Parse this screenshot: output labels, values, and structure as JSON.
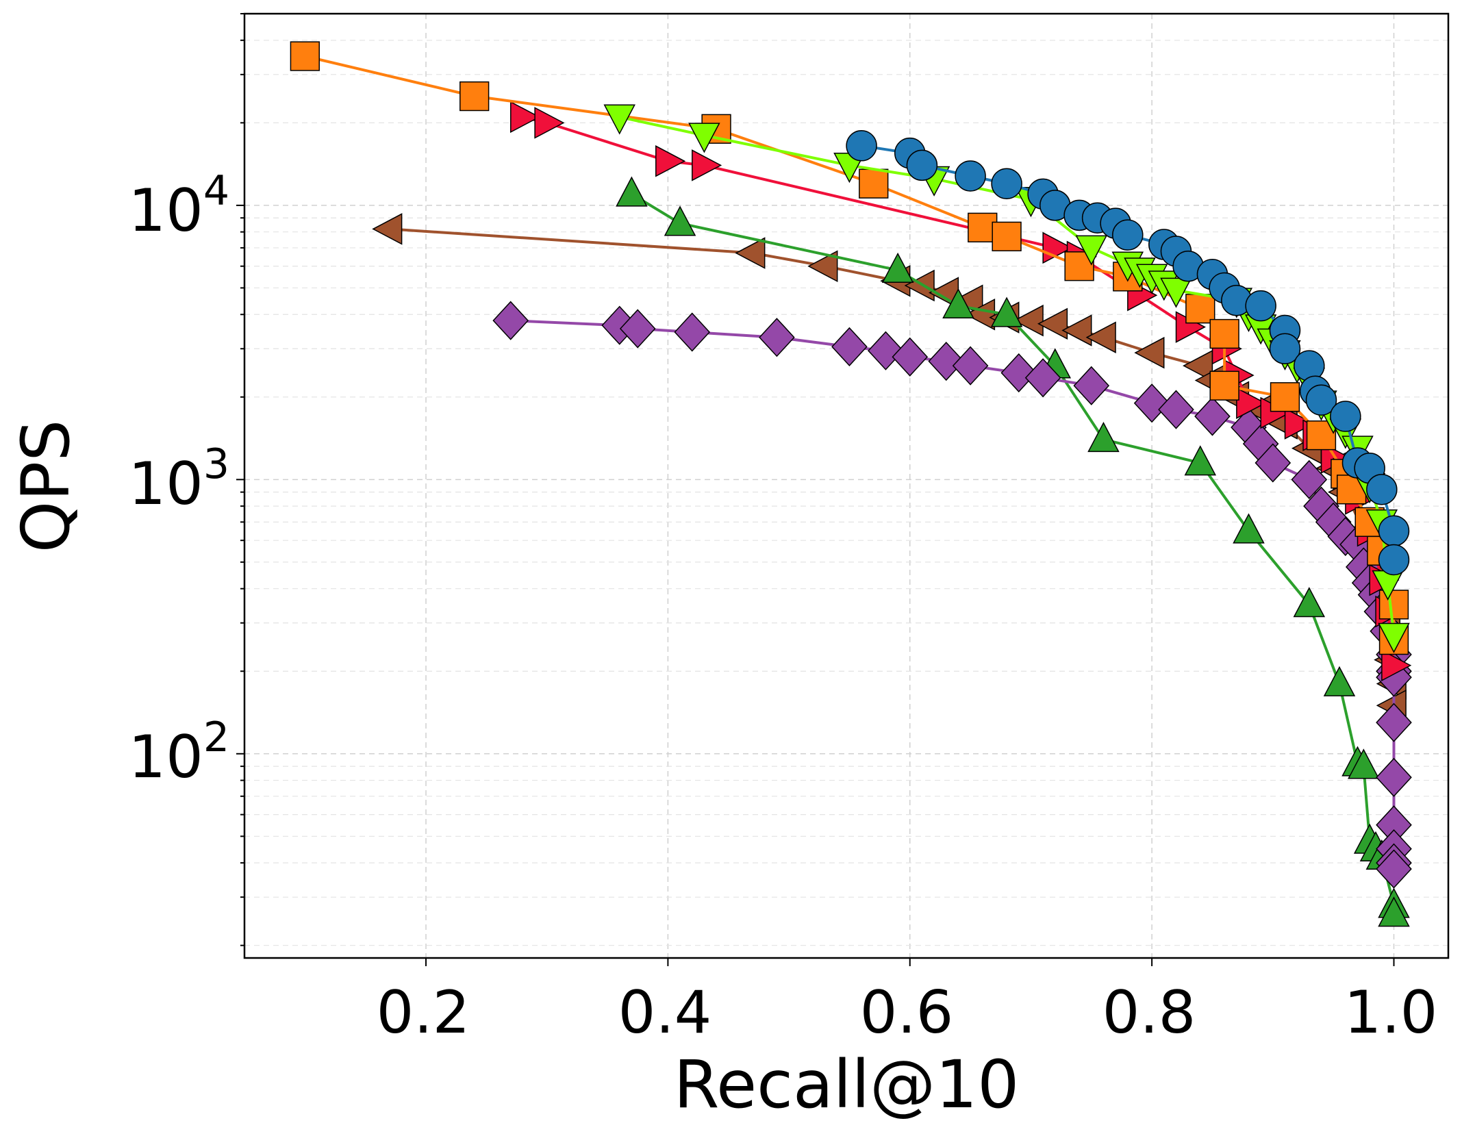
{
  "chart_data": {
    "type": "line",
    "title": "",
    "xlabel": "Recall@10",
    "ylabel": "QPS",
    "yscale": "log",
    "xlim": [
      0.05,
      1.045
    ],
    "ylim": [
      18,
      50000
    ],
    "grid": true,
    "x_ticks": [
      "0.2",
      "0.4",
      "0.6",
      "0.8",
      "1.0"
    ],
    "x_tick_values": [
      0.2,
      0.4,
      0.6,
      0.8,
      1.0
    ],
    "y_ticks": [
      {
        "base": "10",
        "exp": "2",
        "value": 100
      },
      {
        "base": "10",
        "exp": "3",
        "value": 1000
      },
      {
        "base": "10",
        "exp": "4",
        "value": 10000
      }
    ],
    "series": [
      {
        "name": "brown-left-triangle",
        "color": "#a0522d",
        "marker": "triangle-left",
        "points": [
          [
            0.17,
            8200
          ],
          [
            0.47,
            6700
          ],
          [
            0.53,
            6000
          ],
          [
            0.59,
            5300
          ],
          [
            0.61,
            5100
          ],
          [
            0.63,
            4800
          ],
          [
            0.65,
            4500
          ],
          [
            0.66,
            4000
          ],
          [
            0.68,
            3900
          ],
          [
            0.7,
            3800
          ],
          [
            0.72,
            3700
          ],
          [
            0.74,
            3500
          ],
          [
            0.76,
            3300
          ],
          [
            0.8,
            2900
          ],
          [
            0.84,
            2600
          ],
          [
            0.85,
            2300
          ],
          [
            0.87,
            2000
          ],
          [
            0.89,
            1800
          ],
          [
            0.91,
            1600
          ],
          [
            0.93,
            1300
          ],
          [
            0.95,
            1100
          ],
          [
            0.96,
            900
          ],
          [
            0.975,
            650
          ],
          [
            0.985,
            450
          ],
          [
            0.99,
            330
          ],
          [
            0.995,
            280
          ],
          [
            0.998,
            220
          ],
          [
            1.0,
            180
          ],
          [
            1.0,
            150
          ]
        ]
      },
      {
        "name": "green-up-triangle",
        "color": "#2ca02c",
        "marker": "triangle-up",
        "points": [
          [
            0.37,
            11000
          ],
          [
            0.41,
            8600
          ],
          [
            0.59,
            5800
          ],
          [
            0.64,
            4300
          ],
          [
            0.68,
            4000
          ],
          [
            0.72,
            2600
          ],
          [
            0.76,
            1400
          ],
          [
            0.84,
            1150
          ],
          [
            0.88,
            650
          ],
          [
            0.93,
            350
          ],
          [
            0.955,
            180
          ],
          [
            0.97,
            92
          ],
          [
            0.975,
            90
          ],
          [
            0.98,
            48
          ],
          [
            0.985,
            45
          ],
          [
            0.99,
            42
          ],
          [
            1.0,
            28
          ],
          [
            1.0,
            26
          ]
        ]
      },
      {
        "name": "purple-diamond",
        "color": "#9448a8",
        "marker": "diamond",
        "points": [
          [
            0.27,
            3800
          ],
          [
            0.36,
            3650
          ],
          [
            0.375,
            3550
          ],
          [
            0.42,
            3450
          ],
          [
            0.49,
            3300
          ],
          [
            0.55,
            3050
          ],
          [
            0.58,
            2950
          ],
          [
            0.6,
            2800
          ],
          [
            0.63,
            2700
          ],
          [
            0.65,
            2600
          ],
          [
            0.69,
            2450
          ],
          [
            0.71,
            2350
          ],
          [
            0.75,
            2200
          ],
          [
            0.8,
            1900
          ],
          [
            0.82,
            1800
          ],
          [
            0.85,
            1700
          ],
          [
            0.88,
            1550
          ],
          [
            0.89,
            1350
          ],
          [
            0.9,
            1150
          ],
          [
            0.93,
            1000
          ],
          [
            0.94,
            800
          ],
          [
            0.95,
            700
          ],
          [
            0.96,
            620
          ],
          [
            0.97,
            580
          ],
          [
            0.975,
            480
          ],
          [
            0.98,
            420
          ],
          [
            0.985,
            380
          ],
          [
            0.99,
            330
          ],
          [
            0.995,
            280
          ],
          [
            1.0,
            230
          ],
          [
            1.0,
            200
          ],
          [
            1.0,
            190
          ],
          [
            1.0,
            130
          ],
          [
            1.0,
            82
          ],
          [
            1.0,
            55
          ],
          [
            1.0,
            45
          ],
          [
            1.0,
            40
          ],
          [
            1.0,
            38
          ]
        ]
      },
      {
        "name": "red-right-triangle",
        "color": "#f0103a",
        "marker": "triangle-right",
        "points": [
          [
            0.28,
            21000
          ],
          [
            0.3,
            20000
          ],
          [
            0.4,
            14500
          ],
          [
            0.43,
            14000
          ],
          [
            0.72,
            7000
          ],
          [
            0.74,
            6500
          ],
          [
            0.79,
            4700
          ],
          [
            0.83,
            3600
          ],
          [
            0.86,
            3000
          ],
          [
            0.87,
            2400
          ],
          [
            0.88,
            1900
          ],
          [
            0.9,
            1750
          ],
          [
            0.92,
            1600
          ],
          [
            0.935,
            1450
          ],
          [
            0.95,
            1200
          ],
          [
            0.96,
            1050
          ],
          [
            0.97,
            850
          ],
          [
            0.98,
            650
          ],
          [
            0.99,
            430
          ],
          [
            0.995,
            330
          ],
          [
            1.0,
            210
          ]
        ]
      },
      {
        "name": "orange-square",
        "color": "#ff7f0e",
        "marker": "square",
        "points": [
          [
            0.1,
            35000
          ],
          [
            0.24,
            25000
          ],
          [
            0.44,
            19000
          ],
          [
            0.57,
            12000
          ],
          [
            0.66,
            8300
          ],
          [
            0.68,
            7700
          ],
          [
            0.74,
            6000
          ],
          [
            0.78,
            5500
          ],
          [
            0.84,
            4200
          ],
          [
            0.86,
            3400
          ],
          [
            0.86,
            2200
          ],
          [
            0.91,
            2000
          ],
          [
            0.94,
            1450
          ],
          [
            0.96,
            1050
          ],
          [
            0.965,
            920
          ],
          [
            0.98,
            700
          ],
          [
            0.99,
            550
          ],
          [
            1.0,
            350
          ],
          [
            1.0,
            260
          ]
        ]
      },
      {
        "name": "lime-down-triangle",
        "color": "#7fff00",
        "marker": "triangle-down",
        "points": [
          [
            0.36,
            21000
          ],
          [
            0.43,
            18000
          ],
          [
            0.55,
            14000
          ],
          [
            0.62,
            12500
          ],
          [
            0.7,
            10500
          ],
          [
            0.75,
            7000
          ],
          [
            0.78,
            6100
          ],
          [
            0.79,
            5800
          ],
          [
            0.8,
            5500
          ],
          [
            0.81,
            5200
          ],
          [
            0.82,
            4900
          ],
          [
            0.87,
            4500
          ],
          [
            0.88,
            4000
          ],
          [
            0.89,
            3600
          ],
          [
            0.9,
            3200
          ],
          [
            0.91,
            2900
          ],
          [
            0.92,
            2600
          ],
          [
            0.93,
            2300
          ],
          [
            0.94,
            1900
          ],
          [
            0.95,
            1700
          ],
          [
            0.96,
            1500
          ],
          [
            0.97,
            1300
          ],
          [
            0.98,
            950
          ],
          [
            0.99,
            700
          ],
          [
            0.995,
            420
          ],
          [
            1.0,
            270
          ]
        ]
      },
      {
        "name": "blue-circle",
        "color": "#1f77b4",
        "marker": "circle",
        "points": [
          [
            0.56,
            16500
          ],
          [
            0.6,
            15500
          ],
          [
            0.61,
            14000
          ],
          [
            0.65,
            12800
          ],
          [
            0.68,
            12000
          ],
          [
            0.71,
            11000
          ],
          [
            0.72,
            10000
          ],
          [
            0.74,
            9200
          ],
          [
            0.755,
            9000
          ],
          [
            0.77,
            8600
          ],
          [
            0.78,
            7800
          ],
          [
            0.81,
            7200
          ],
          [
            0.82,
            6800
          ],
          [
            0.83,
            6000
          ],
          [
            0.85,
            5600
          ],
          [
            0.86,
            5000
          ],
          [
            0.87,
            4500
          ],
          [
            0.89,
            4300
          ],
          [
            0.91,
            3500
          ],
          [
            0.91,
            3000
          ],
          [
            0.93,
            2600
          ],
          [
            0.935,
            2100
          ],
          [
            0.94,
            1950
          ],
          [
            0.96,
            1700
          ],
          [
            0.97,
            1150
          ],
          [
            0.98,
            1100
          ],
          [
            0.99,
            920
          ],
          [
            1.0,
            650
          ],
          [
            1.0,
            510
          ]
        ]
      }
    ]
  }
}
